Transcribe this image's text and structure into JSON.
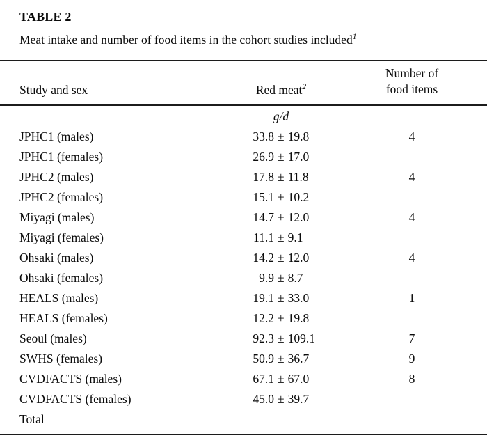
{
  "title": "TABLE 2",
  "caption": {
    "text": "Meat intake and number of food items in the cohort studies included",
    "footnote_mark": "1"
  },
  "symbols": {
    "plus_minus": "±"
  },
  "columns": {
    "study": "Study and sex",
    "red_meat": {
      "label": "Red meat",
      "footnote_mark": "2"
    },
    "items_line1": "Number of",
    "items_line2": "food items"
  },
  "unit": "g/d",
  "rows": [
    {
      "study": "JPHC1 (males)",
      "mean": "33.8",
      "sd": "19.8",
      "items": "4"
    },
    {
      "study": "JPHC1 (females)",
      "mean": "26.9",
      "sd": "17.0",
      "items": ""
    },
    {
      "study": "JPHC2 (males)",
      "mean": "17.8",
      "sd": "11.8",
      "items": "4"
    },
    {
      "study": "JPHC2 (females)",
      "mean": "15.1",
      "sd": "10.2",
      "items": ""
    },
    {
      "study": "Miyagi (males)",
      "mean": "14.7",
      "sd": "12.0",
      "items": "4"
    },
    {
      "study": "Miyagi (females)",
      "mean": "11.1",
      "sd": "9.1",
      "items": ""
    },
    {
      "study": "Ohsaki (males)",
      "mean": "14.2",
      "sd": "12.0",
      "items": "4"
    },
    {
      "study": "Ohsaki (females)",
      "mean": "9.9",
      "sd": "8.7",
      "items": ""
    },
    {
      "study": "HEALS (males)",
      "mean": "19.1",
      "sd": "33.0",
      "items": "1"
    },
    {
      "study": "HEALS (females)",
      "mean": "12.2",
      "sd": "19.8",
      "items": ""
    },
    {
      "study": "Seoul (males)",
      "mean": "92.3",
      "sd": "109.1",
      "items": "7"
    },
    {
      "study": "SWHS (females)",
      "mean": "50.9",
      "sd": "36.7",
      "items": "9"
    },
    {
      "study": "CVDFACTS (males)",
      "mean": "67.1",
      "sd": "67.0",
      "items": "8"
    },
    {
      "study": "CVDFACTS (females)",
      "mean": "45.0",
      "sd": "39.7",
      "items": ""
    },
    {
      "study": "Total",
      "mean": "",
      "sd": "",
      "items": ""
    }
  ]
}
